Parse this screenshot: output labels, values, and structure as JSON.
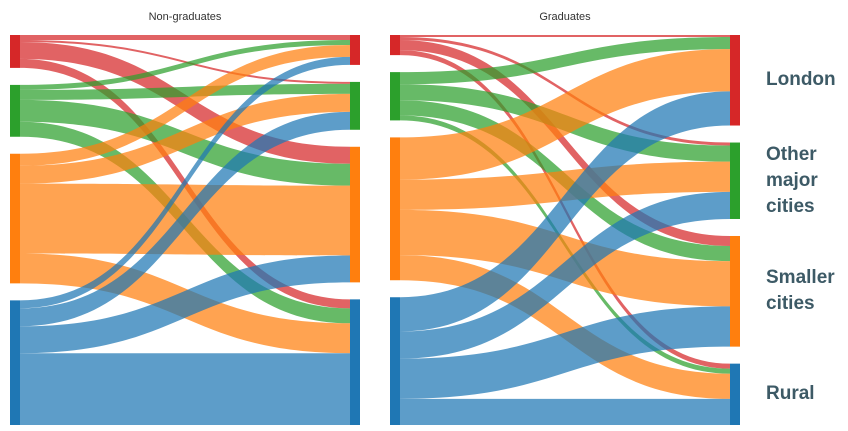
{
  "categories": [
    "London",
    "Other major cities",
    "Smaller cities",
    "Rural"
  ],
  "colors": [
    "#d62728",
    "#2ca02c",
    "#ff7f0e",
    "#1f77b4"
  ],
  "chart_data": [
    {
      "type": "sankey",
      "title": "Non-graduates",
      "flows": [
        [
          5,
          2,
          17,
          9
        ],
        [
          5,
          10,
          22,
          15
        ],
        [
          12,
          18,
          70,
          30
        ],
        [
          8,
          18,
          27,
          72
        ]
      ]
    },
    {
      "type": "sankey",
      "title": "Graduates",
      "flows": [
        [
          2,
          3,
          10,
          5
        ],
        [
          12,
          16,
          15,
          5
        ],
        [
          42,
          30,
          45,
          25
        ],
        [
          34,
          27,
          40,
          26
        ]
      ]
    }
  ]
}
